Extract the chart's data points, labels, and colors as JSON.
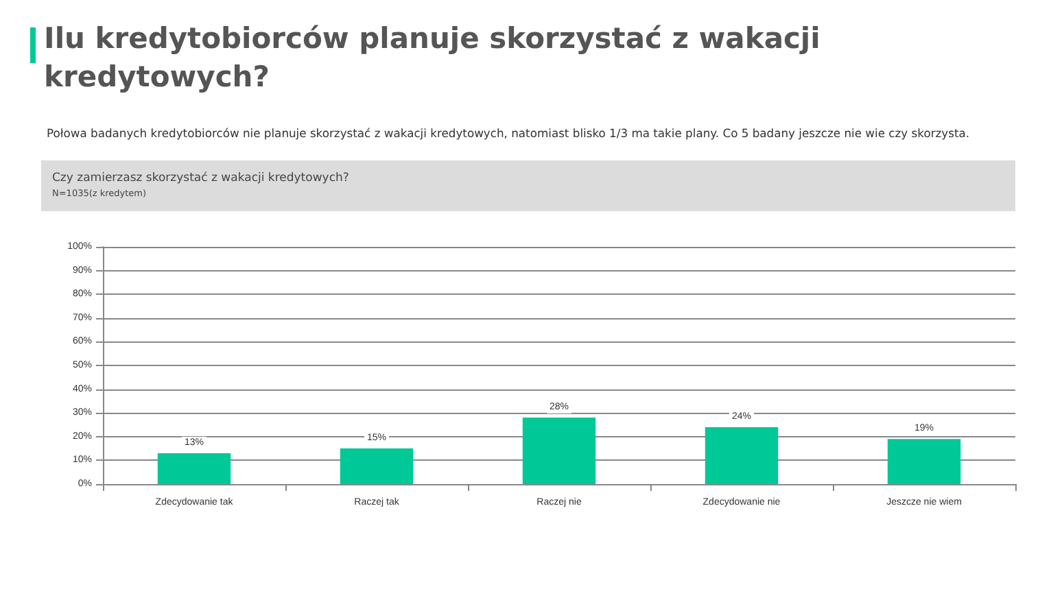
{
  "chart_data": {
    "type": "bar",
    "title": "Ilu kredytobiorców planuje skorzystać z wakacji kredytowych?",
    "subtitle": "Połowa badanych kredytobiorców nie planuje skorzystać z wakacji kredytowych, natomiast blisko 1/3 ma takie plany. Co 5 badany jeszcze nie wie czy skorzysta.",
    "annotations": [
      "Czy zamierzasz skorzystać z wakacji kredytowych?",
      "N=1035(z kredytem)"
    ],
    "categories": [
      "Zdecydowanie tak",
      "Raczej tak",
      "Raczej nie",
      "Zdecydowanie nie",
      "Jeszcze nie wiem"
    ],
    "values": [
      13,
      15,
      28,
      24,
      19
    ],
    "value_labels": [
      "13%",
      "15%",
      "28%",
      "24%",
      "19%"
    ],
    "color": "#00c896",
    "ylim": [
      0,
      100
    ],
    "yticks": [
      {
        "value": 0,
        "label": "0%"
      },
      {
        "value": 10,
        "label": "10%"
      },
      {
        "value": 20,
        "label": "20%"
      },
      {
        "value": 30,
        "label": "30%"
      },
      {
        "value": 40,
        "label": "40%"
      },
      {
        "value": 50,
        "label": "50%"
      },
      {
        "value": 60,
        "label": "60%"
      },
      {
        "value": 70,
        "label": "70%"
      },
      {
        "value": 80,
        "label": "80%"
      },
      {
        "value": 90,
        "label": "90%"
      },
      {
        "value": 100,
        "label": "100%"
      }
    ],
    "grid": "y"
  }
}
